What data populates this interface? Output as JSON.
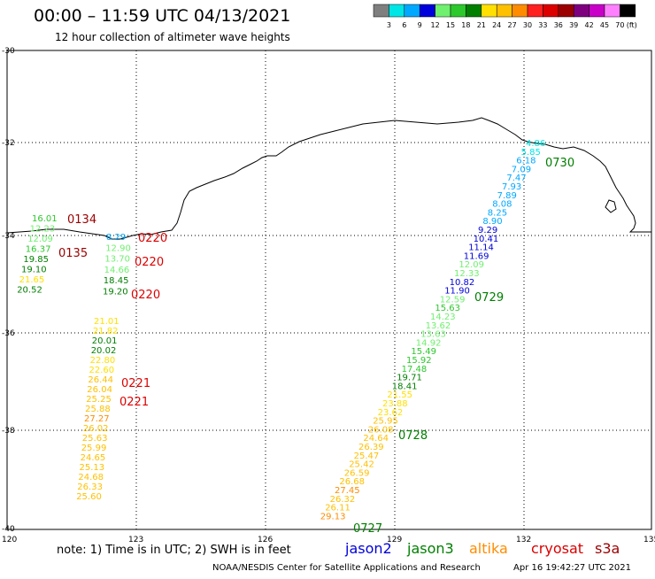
{
  "header": {
    "title": "00:00 – 11:59 UTC 04/13/2021",
    "subtitle": "12 hour collection of altimeter wave heights"
  },
  "colorbar": {
    "colors": [
      "#7f7f7f",
      "#00e5e5",
      "#00a8ff",
      "#0000dc",
      "#6ff06f",
      "#2cc82c",
      "#007f00",
      "#ffe000",
      "#ffc000",
      "#ff8c00",
      "#ff2020",
      "#dc0000",
      "#9c0000",
      "#7f007f",
      "#c800c8",
      "#ff80ff",
      "#000000"
    ],
    "tick_labels": [
      "3",
      "6",
      "9",
      "12",
      "15",
      "18",
      "21",
      "24",
      "27",
      "30",
      "33",
      "36",
      "39",
      "42",
      "45",
      "70"
    ],
    "unit": "(ft)"
  },
  "axes": {
    "lat_labels": [
      "-30",
      "-32",
      "-34",
      "-36",
      "-38",
      "-40"
    ],
    "lon_labels": [
      "120",
      "123",
      "126",
      "129",
      "132",
      "135"
    ]
  },
  "passes": [
    {
      "time": "0134",
      "color": "#9c0000"
    },
    {
      "time": "0135",
      "color": "#9c0000"
    },
    {
      "time": "0220",
      "color": "#dc0000"
    },
    {
      "time": "0220",
      "color": "#dc0000"
    },
    {
      "time": "0220",
      "color": "#dc0000"
    },
    {
      "time": "0221",
      "color": "#dc0000"
    },
    {
      "time": "0221",
      "color": "#dc0000"
    },
    {
      "time": "0730",
      "color": "#007f00"
    },
    {
      "time": "0729",
      "color": "#007f00"
    },
    {
      "time": "0728",
      "color": "#007f00"
    },
    {
      "time": "0727",
      "color": "#007f00"
    }
  ],
  "wave_values": {
    "west": [
      "16.01",
      "12.23",
      "12.09",
      "16.37",
      "19.85",
      "19.10",
      "21.65",
      "20.52"
    ],
    "mid_north": [
      "8.29",
      "12.90",
      "13.70",
      "14.66",
      "18.45",
      "19.20"
    ],
    "mid_south": [
      "21.01",
      "21.82",
      "20.01",
      "20.02",
      "22.80",
      "22.60",
      "26.44",
      "26.04",
      "25.25",
      "25.88",
      "27.27",
      "26.02",
      "25.63",
      "25.99",
      "24.65",
      "25.13",
      "24.68",
      "26.33",
      "25.60"
    ],
    "east_track": [
      "4.86",
      "5.85",
      "6.18",
      "7.09",
      "7.47",
      "7.93",
      "7.89",
      "8.08",
      "8.25",
      "8.90",
      "9.29",
      "10.41",
      "11.14",
      "11.69",
      "12.09",
      "12.33",
      "10.82",
      "11.90",
      "12.59",
      "15.63",
      "14.23",
      "13.62",
      "13.63",
      "14.92",
      "15.49",
      "15.92",
      "17.48",
      "19.71",
      "18.41",
      "21.55",
      "23.88",
      "23.62",
      "25.95",
      "26.08",
      "24.64",
      "26.39",
      "25.47",
      "25.42",
      "26.59",
      "26.68",
      "27.45",
      "26.32",
      "26.11",
      "29.13"
    ]
  },
  "footer": {
    "note": "note: 1) Time is in UTC; 2) SWH is in feet",
    "legend": [
      {
        "name": "jason2",
        "color": "#0000dc"
      },
      {
        "name": "jason3",
        "color": "#007f00"
      },
      {
        "name": "altika",
        "color": "#ff8c00"
      },
      {
        "name": "cryosat",
        "color": "#dc0000"
      },
      {
        "name": "s3a",
        "color": "#9c0000"
      }
    ],
    "credit": "NOAA/NESDIS Center for Satellite Applications and Research",
    "timestamp": "Apr 16 19:42:27 UTC 2021"
  }
}
